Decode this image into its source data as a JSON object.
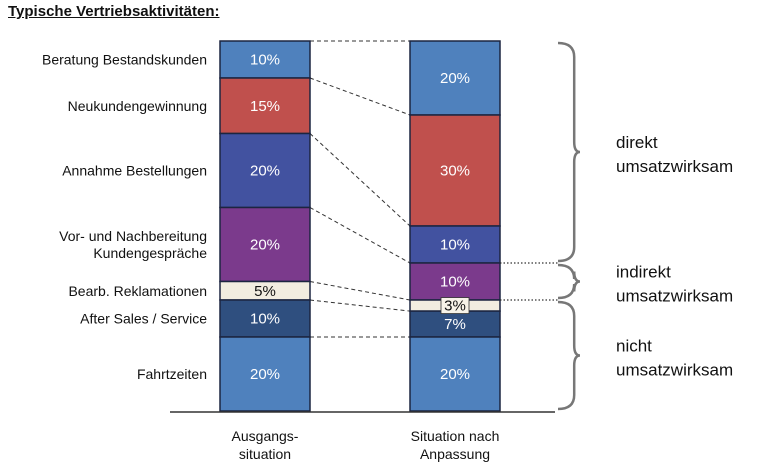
{
  "title": "Typische Vertriebsaktivitäten:",
  "chart_data": {
    "type": "bar",
    "stacked": true,
    "categories": [
      "Ausgangs-\nsituation",
      "Situation nach\nAnpassung"
    ],
    "series": [
      {
        "name": "Beratung Bestandskunden",
        "values": [
          10,
          20
        ],
        "labels": [
          "10%",
          "20%"
        ],
        "color": "#4f81bd"
      },
      {
        "name": "Neukundengewinnung",
        "values": [
          15,
          30
        ],
        "labels": [
          "15%",
          "30%"
        ],
        "color": "#c0504d"
      },
      {
        "name": "Annahme Bestellungen",
        "values": [
          20,
          10
        ],
        "labels": [
          "20%",
          "10%"
        ],
        "color": "#4252a0"
      },
      {
        "name": "Vor- und Nachbereitung\nKundengespräche",
        "values": [
          20,
          10
        ],
        "labels": [
          "20%",
          "10%"
        ],
        "color": "#7b3a8c"
      },
      {
        "name": "Bearb. Reklamationen",
        "values": [
          5,
          3
        ],
        "labels": [
          "5%",
          "3%"
        ],
        "color": "#f2ede0"
      },
      {
        "name": "After Sales / Service",
        "values": [
          10,
          7
        ],
        "labels": [
          "10%",
          "7%"
        ],
        "color": "#2f4f7f"
      },
      {
        "name": "Fahrtzeiten",
        "values": [
          20,
          20
        ],
        "labels": [
          "20%",
          "20%"
        ],
        "color": "#4f81bd"
      }
    ],
    "groups": [
      {
        "label": "direkt\numsatzwirksam",
        "series_range": [
          0,
          2
        ]
      },
      {
        "label": "indirekt\numsatzwirksam",
        "series_range": [
          3,
          3
        ]
      },
      {
        "label": "nicht\numsatzwirksam",
        "series_range": [
          4,
          6
        ]
      }
    ],
    "ylim": [
      0,
      100
    ],
    "grid": false
  }
}
